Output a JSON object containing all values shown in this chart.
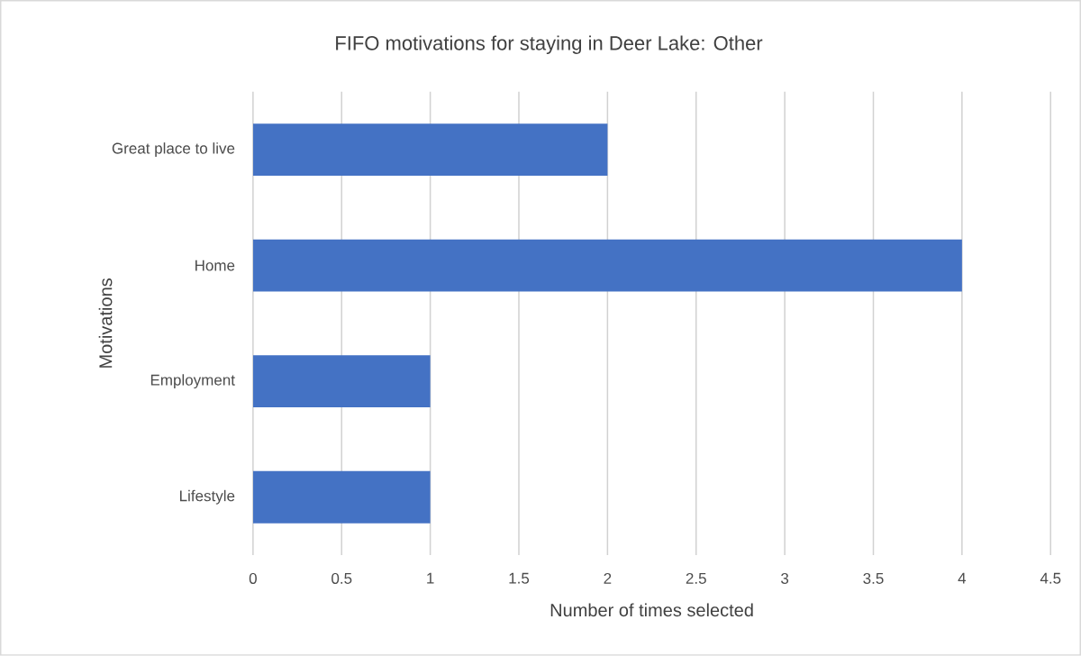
{
  "chart_data": {
    "type": "bar",
    "orientation": "horizontal",
    "title": "FIFO motivations for staying in Deer Lake: Other",
    "xlabel": "Number of times selected",
    "ylabel": "Motivations",
    "categories": [
      "Great place to live",
      "Home",
      "Employment",
      "Lifestyle"
    ],
    "values": [
      2,
      4,
      1,
      1
    ],
    "color": "#4472c4",
    "xlim": [
      0,
      4.5
    ],
    "xticks": [
      0,
      0.5,
      1,
      1.5,
      2,
      2.5,
      3,
      3.5,
      4,
      4.5
    ],
    "grid": "x"
  }
}
